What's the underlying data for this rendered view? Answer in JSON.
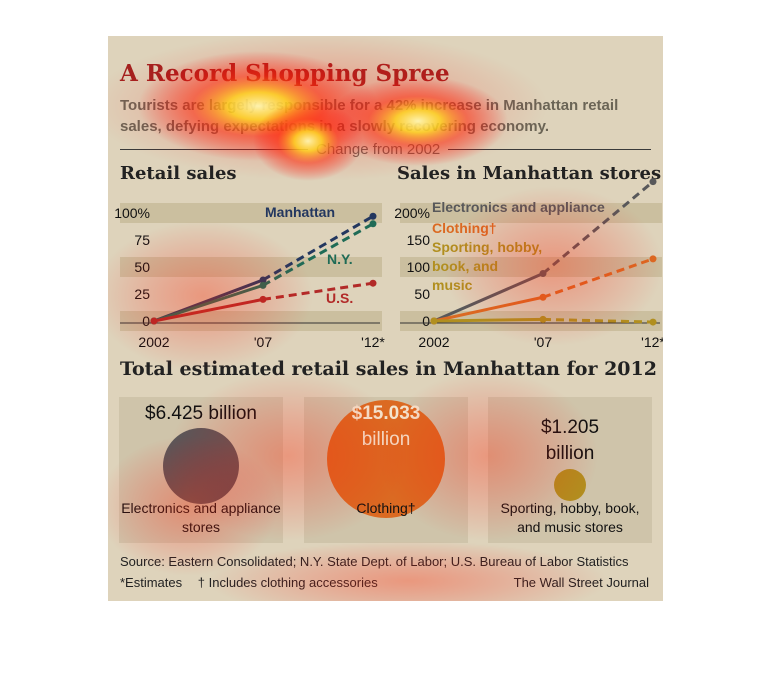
{
  "header": {
    "title": "A Record Shopping Spree",
    "deck": "Tourists are largely responsible for a 42% increase in Manhattan retail sales, defying expectations in a slowly recovering economy.",
    "divider": "Change from 2002"
  },
  "chart_data": [
    {
      "type": "line",
      "title": "Retail sales",
      "x_labels": [
        "2002",
        "'07",
        "'12*"
      ],
      "y_ticks": [
        "100%",
        "75",
        "50",
        "25",
        "0"
      ],
      "ylim": [
        0,
        100
      ],
      "grid": "banded",
      "series": [
        {
          "name": "Manhattan",
          "values": [
            0,
            38,
            97
          ],
          "color": "#23375f"
        },
        {
          "name": "N.Y.",
          "values": [
            0,
            33,
            90
          ],
          "color": "#1f6b56"
        },
        {
          "name": "U.S.",
          "values": [
            0,
            20,
            35
          ],
          "color": "#b22a28"
        }
      ]
    },
    {
      "type": "line",
      "title": "Sales in Manhattan stores",
      "x_labels": [
        "2002",
        "'07",
        "'12*"
      ],
      "y_ticks": [
        "200%",
        "150",
        "100",
        "50",
        "0"
      ],
      "ylim": [
        0,
        200
      ],
      "grid": "banded",
      "series": [
        {
          "name": "Electronics and appliance",
          "values": [
            0,
            88,
            258
          ],
          "color": "#58585a"
        },
        {
          "name": "Clothing†",
          "values": [
            0,
            44,
            115
          ],
          "color": "#db6a22"
        },
        {
          "name": "Sporting, hobby, book, and music",
          "values": [
            0,
            3,
            -2
          ],
          "color": "#b18f1f"
        }
      ]
    }
  ],
  "totals": {
    "title": "Total estimated retail sales in Manhattan for 2012",
    "items": [
      {
        "amount": "$6.425 billion",
        "label": "Electronics and appliance stores",
        "value_billion": 6.425,
        "color": "#58585a"
      },
      {
        "amount_line1": "$15.033",
        "amount_line2": "billion",
        "label": "Clothing†",
        "value_billion": 15.033,
        "color": "#db6a22"
      },
      {
        "amount_line1": "$1.205",
        "amount_line2": "billion",
        "label": "Sporting, hobby, book, and music stores",
        "value_billion": 1.205,
        "color": "#b18f1f"
      }
    ]
  },
  "footer": {
    "source": "Source: Eastern Consolidated; N.Y. State Dept. of Labor; U.S. Bureau of Labor Statistics",
    "estimates_note": "*Estimates",
    "clothing_note": "† Includes clothing accessories",
    "credit": "The Wall Street Journal"
  }
}
